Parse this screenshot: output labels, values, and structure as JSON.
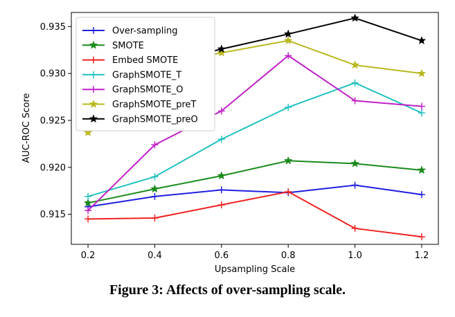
{
  "caption": "Figure 3: Affects of over-sampling scale.",
  "chart_data": {
    "type": "line",
    "title": "",
    "xlabel": "Upsampling Scale",
    "ylabel": "AUC-ROC Score",
    "x": [
      0.2,
      0.4,
      0.6,
      0.8,
      1.0,
      1.2
    ],
    "xlim": [
      0.15,
      1.25
    ],
    "ylim": [
      0.9118,
      0.9365
    ],
    "xticks": [
      "0.2",
      "0.4",
      "0.6",
      "0.8",
      "1.0",
      "1.2"
    ],
    "yticks": [
      "0.915",
      "0.920",
      "0.925",
      "0.930",
      "0.935"
    ],
    "grid": false,
    "legend_position": "top-left",
    "series": [
      {
        "name": "Over-sampling",
        "color": "#1f1fe0",
        "marker": "plus",
        "values": [
          0.9158,
          0.9169,
          0.9176,
          0.9173,
          0.9181,
          0.9171
        ]
      },
      {
        "name": "SMOTE",
        "color": "#1a8a1a",
        "marker": "star",
        "values": [
          0.9162,
          0.9177,
          0.9191,
          0.9207,
          0.9204,
          0.9197
        ]
      },
      {
        "name": "Embed SMOTE",
        "color": "#f02020",
        "marker": "plus",
        "values": [
          0.9145,
          0.9146,
          0.916,
          0.9174,
          0.9135,
          0.9126
        ]
      },
      {
        "name": "GraphSMOTE_T",
        "color": "#20c0c0",
        "marker": "plus",
        "values": [
          0.9169,
          0.919,
          0.923,
          0.9264,
          0.929,
          0.9258
        ]
      },
      {
        "name": "GraphSMOTE_O",
        "color": "#c020c8",
        "marker": "plus",
        "values": [
          0.9154,
          0.9224,
          0.926,
          0.9319,
          0.9271,
          0.9265
        ]
      },
      {
        "name": "GraphSMOTE_preT",
        "color": "#b8b820",
        "marker": "star",
        "values": [
          0.9237,
          0.9307,
          0.9322,
          0.9335,
          0.9309,
          0.93
        ]
      },
      {
        "name": "GraphSMOTE_preO",
        "color": "#000000",
        "marker": "star",
        "values": [
          0.9246,
          0.9309,
          0.9326,
          0.9342,
          0.9359,
          0.9335
        ]
      }
    ]
  }
}
